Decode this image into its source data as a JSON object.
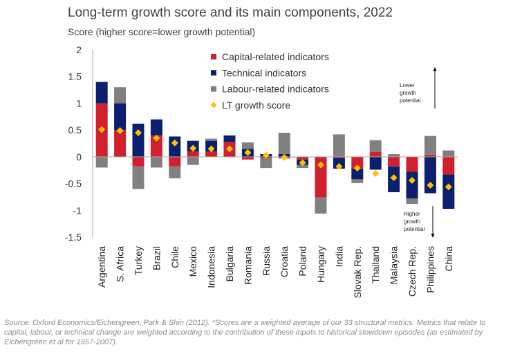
{
  "chart_data": {
    "type": "bar",
    "stacked": true,
    "title": "Long-term growth score and its main components, 2022",
    "subtitle": "Score (higher score=lower growth potential)",
    "ylim": [
      -1.5,
      2
    ],
    "yticks": [
      2,
      1.5,
      1,
      0.5,
      0,
      -0.5,
      -1,
      -1.5
    ],
    "grid": false,
    "legend_position": "top-center",
    "categories": [
      "Argentina",
      "S. Africa",
      "Turkey",
      "Brazil",
      "Chile",
      "Mexico",
      "Indonesia",
      "Bulgaria",
      "Romania",
      "Russia",
      "Croatia",
      "Poland",
      "Hungary",
      "India",
      "Slovak Rep.",
      "Thailand",
      "Malaysia",
      "Czech Rep.",
      "Philippines",
      "China"
    ],
    "series": [
      {
        "name": "Capital-related indicators",
        "type": "bar",
        "color": "#d0202e",
        "values": [
          1.0,
          0.5,
          -0.18,
          0.4,
          -0.18,
          0.1,
          0.1,
          0.28,
          -0.05,
          -0.03,
          -0.03,
          -0.05,
          -0.76,
          -0.02,
          -0.22,
          0.09,
          -0.18,
          -0.28,
          0.04,
          -0.33
        ]
      },
      {
        "name": "Technical indicators",
        "type": "bar",
        "color": "#0a1f6e",
        "values": [
          0.4,
          0.5,
          0.62,
          0.3,
          0.38,
          0.2,
          0.2,
          0.12,
          0.15,
          0.05,
          0.05,
          -0.1,
          0.0,
          -0.2,
          -0.2,
          -0.24,
          -0.48,
          -0.5,
          -0.68,
          -0.64
        ]
      },
      {
        "name": "Labour-related indicators",
        "type": "bar",
        "color": "#808080",
        "values": [
          -0.2,
          0.3,
          -0.42,
          -0.2,
          -0.22,
          -0.15,
          0.04,
          0.0,
          0.12,
          -0.18,
          0.4,
          -0.06,
          -0.3,
          0.42,
          -0.07,
          0.22,
          0.05,
          -0.1,
          0.35,
          0.12
        ]
      },
      {
        "name": "LT growth score",
        "type": "scatter",
        "color": "#ffc000",
        "marker": "diamond",
        "values": [
          0.51,
          0.49,
          0.45,
          0.35,
          0.26,
          0.16,
          0.15,
          0.15,
          0.08,
          0.03,
          -0.01,
          -0.11,
          -0.15,
          -0.18,
          -0.21,
          -0.31,
          -0.39,
          -0.44,
          -0.53,
          -0.56
        ]
      }
    ],
    "annotations": {
      "lower": [
        "Lower",
        "growth",
        "potential"
      ],
      "higher": [
        "Higher",
        "growth",
        "potential"
      ]
    }
  },
  "source_text": "Source: Oxford Economics/Eichengreen, Park & Shin (2012). *Scores are a weighted average of our 33 structural metrics. Metrics that relate to capital, labour, or technical change are weighted according to the contribution of these inputs to historical slowdown episodes (as estimated by Eichengreen et al for 1957-2007)."
}
